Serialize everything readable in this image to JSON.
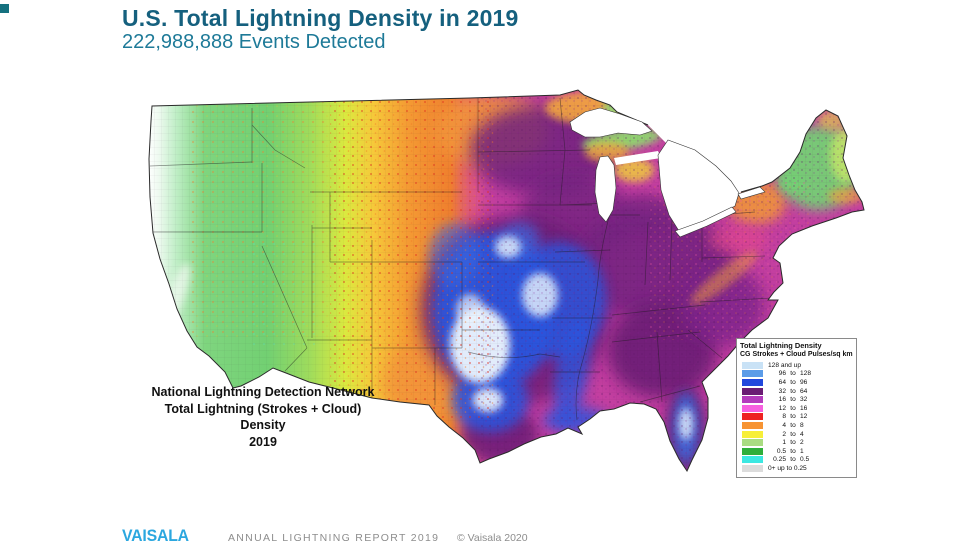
{
  "header": {
    "title": "U.S. Total Lightning Density in 2019",
    "subtitle": "222,988,888 Events Detected",
    "title_color": "#15607e",
    "subtitle_color": "#1e7a98"
  },
  "corner_mark_color": "#15717f",
  "map": {
    "label_line1": "National Lightning Detection Network",
    "label_line2": "Total Lightning (Strokes + Cloud) Density",
    "label_line3": "2019"
  },
  "legend": {
    "title": "Total Lightning Density",
    "subtitle": "CG Strokes + Cloud Pulses/sq km",
    "to_word": "to",
    "rows": [
      {
        "swatch": "#c9e2f6",
        "single": true,
        "label": "128 and up"
      },
      {
        "swatch": "#5b9ce8",
        "single": false,
        "min": "96",
        "max": "128"
      },
      {
        "swatch": "#2148dd",
        "single": false,
        "min": "64",
        "max": "96"
      },
      {
        "swatch": "#6a1c74",
        "single": false,
        "min": "32",
        "max": "64"
      },
      {
        "swatch": "#b43bbd",
        "single": false,
        "min": "16",
        "max": "32"
      },
      {
        "swatch": "#f75fe0",
        "single": false,
        "min": "12",
        "max": "16"
      },
      {
        "swatch": "#ee2222",
        "single": false,
        "min": "8",
        "max": "12"
      },
      {
        "swatch": "#f79433",
        "single": false,
        "min": "4",
        "max": "8"
      },
      {
        "swatch": "#f7ef38",
        "single": false,
        "min": "2",
        "max": "4"
      },
      {
        "swatch": "#aadc82",
        "single": false,
        "min": "1",
        "max": "2"
      },
      {
        "swatch": "#2fae3a",
        "single": false,
        "min": "0.5",
        "max": "1"
      },
      {
        "swatch": "#3ce8e2",
        "single": false,
        "min": "0.25",
        "max": "0.5"
      },
      {
        "swatch": "#dcdcdc",
        "single": true,
        "label": "0+ up to 0.25"
      }
    ]
  },
  "footer": {
    "logo": "VAISALA",
    "logo_color": "#2ba7df",
    "report": "ANNUAL LIGHTNING REPORT 2019",
    "copyright": "© Vaisala 2020"
  }
}
